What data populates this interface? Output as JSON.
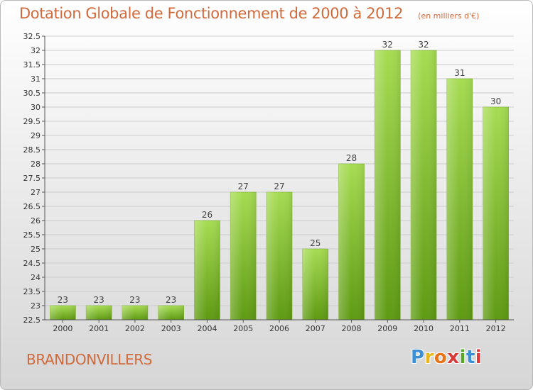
{
  "header": {
    "title": "Dotation Globale de Fonctionnement de 2000 à 2012",
    "unit": "(en milliers d'€)"
  },
  "commune": "BRANDONVILLERS",
  "logo": {
    "letters": [
      "P",
      "r",
      "o",
      "x",
      "i",
      "t",
      "i"
    ],
    "colors": [
      "#3a8fd6",
      "#e8b81a",
      "#e8741a",
      "#d83a3a",
      "#5aa52a",
      "#3a8fd6",
      "#d83a3a"
    ]
  },
  "colors": {
    "bar_light": "#a6dc52",
    "bar_dark": "#5e9a12",
    "grid": "#cccccc",
    "axis": "#555555"
  },
  "chart_data": {
    "type": "bar",
    "categories": [
      "2000",
      "2001",
      "2002",
      "2003",
      "2004",
      "2005",
      "2006",
      "2007",
      "2008",
      "2009",
      "2010",
      "2011",
      "2012"
    ],
    "values": [
      23,
      23,
      23,
      23,
      26,
      27,
      27,
      25,
      28,
      32,
      32,
      31,
      30
    ],
    "labels": [
      "23",
      "23",
      "23",
      "23",
      "26",
      "27",
      "27",
      "25",
      "28",
      "32",
      "32",
      "31",
      "30"
    ],
    "yticks": [
      "22.5",
      "23",
      "23.5",
      "24",
      "24.5",
      "25",
      "25.5",
      "26",
      "26.5",
      "27",
      "27.5",
      "28",
      "28.5",
      "29",
      "29.5",
      "30",
      "30.5",
      "31",
      "31.5",
      "32",
      "32.5"
    ],
    "ylim": [
      22.5,
      32.5
    ],
    "grid": true,
    "legend": "none"
  }
}
